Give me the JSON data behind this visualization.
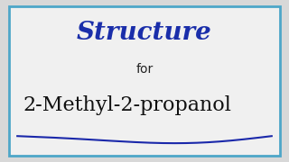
{
  "background_color": "#d8d8d8",
  "border_color": "#4da6c8",
  "border_linewidth": 2.0,
  "title_text": "Structure",
  "title_color": "#1a2eaa",
  "title_fontsize": 20,
  "title_fontstyle": "italic",
  "for_text": "for",
  "for_fontsize": 10,
  "for_color": "#222222",
  "compound_text": "2-Methyl-2-propanol",
  "compound_fontsize": 16,
  "compound_color": "#111111",
  "curve_color": "#1a28aa",
  "curve_linewidth": 1.5,
  "inner_bg_color": "#f0f0f0"
}
